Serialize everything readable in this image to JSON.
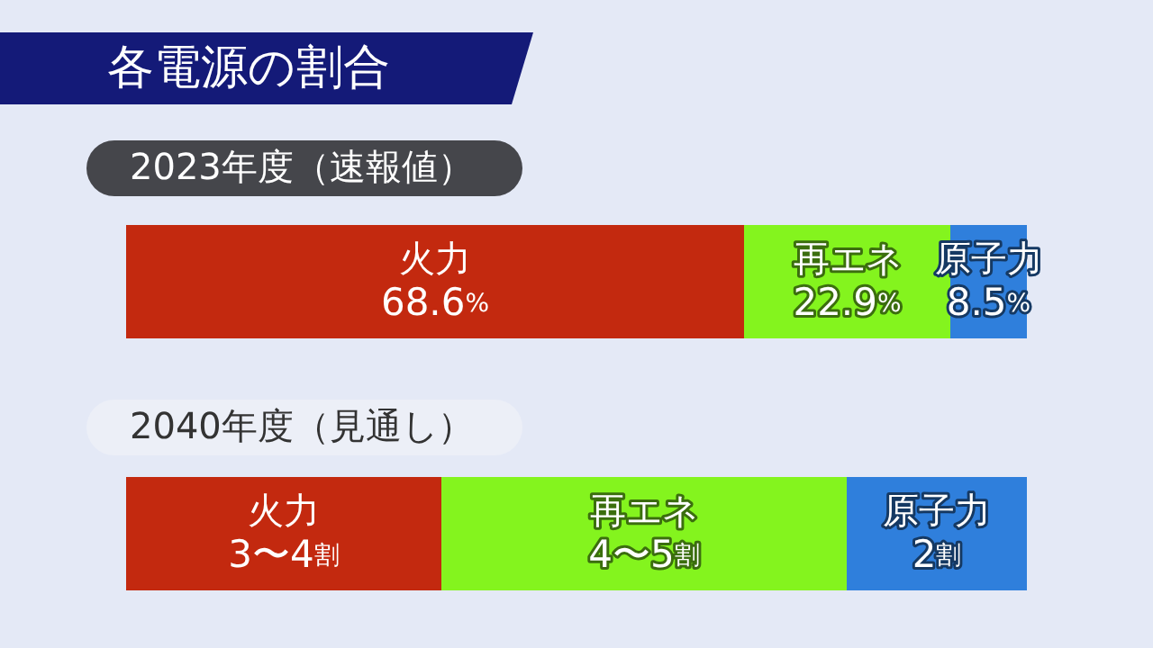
{
  "chart_data": [
    {
      "type": "bar",
      "orientation": "horizontal",
      "stacked": true,
      "title": "各電源の割合",
      "categories": [
        "2023年度（速報値）"
      ],
      "xlim": [
        0,
        100
      ],
      "series": [
        {
          "name": "火力",
          "color": "#c3290f",
          "values": [
            68.6
          ],
          "value_labels": [
            "68.6%"
          ]
        },
        {
          "name": "再エネ",
          "color": "#84f41e",
          "values": [
            22.9
          ],
          "value_labels": [
            "22.9%"
          ]
        },
        {
          "name": "原子力",
          "color": "#2f7fdc",
          "values": [
            8.5
          ],
          "value_labels": [
            "8.5%"
          ]
        }
      ]
    },
    {
      "type": "bar",
      "orientation": "horizontal",
      "stacked": true,
      "categories": [
        "2040年度（見通し）"
      ],
      "xlim": [
        0,
        10
      ],
      "series": [
        {
          "name": "火力",
          "color": "#c3290f",
          "values": [
            3.5
          ],
          "value_labels": [
            "3〜4割"
          ]
        },
        {
          "name": "再エネ",
          "color": "#84f41e",
          "values": [
            4.5
          ],
          "value_labels": [
            "4〜5割"
          ]
        },
        {
          "name": "原子力",
          "color": "#2f7fdc",
          "values": [
            2
          ],
          "value_labels": [
            "2割"
          ]
        }
      ]
    }
  ]
}
